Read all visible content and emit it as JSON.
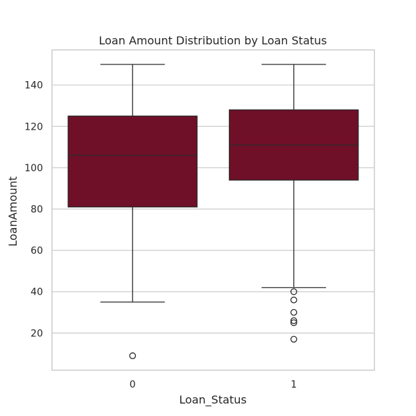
{
  "colors": {
    "box_fill": "#6f0f28",
    "box_edge": "#2b2b2b",
    "grid": "#cccccc",
    "frame": "#cccccc",
    "text": "#262626"
  },
  "chart_data": {
    "type": "boxplot",
    "title": "Loan Amount Distribution by Loan Status",
    "xlabel": "Loan_Status",
    "ylabel": "LoanAmount",
    "categories": [
      "0",
      "1"
    ],
    "ylim": [
      2,
      157
    ],
    "yticks": [
      20,
      40,
      60,
      80,
      100,
      120,
      140
    ],
    "grid": "horizontal",
    "boxes": [
      {
        "category": "0",
        "whisker_low": 35,
        "q1": 81,
        "median": 106,
        "q3": 125,
        "whisker_high": 150,
        "outliers": [
          9
        ]
      },
      {
        "category": "1",
        "whisker_low": 42,
        "q1": 94,
        "median": 111,
        "q3": 128,
        "whisker_high": 150,
        "outliers": [
          17,
          25,
          26,
          30,
          36,
          40
        ]
      }
    ]
  }
}
